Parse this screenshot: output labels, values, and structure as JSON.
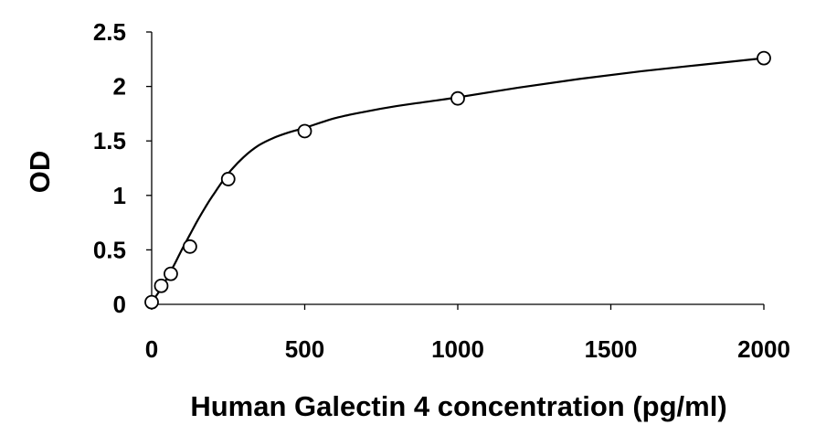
{
  "chart_data": {
    "type": "scatter",
    "title": "",
    "xlabel": "Human Galectin 4 concentration (pg/ml)",
    "ylabel": "OD",
    "xlim": [
      0,
      2000
    ],
    "ylim": [
      0,
      2.5
    ],
    "x_ticks": [
      "0",
      "500",
      "1000",
      "1500",
      "2000"
    ],
    "y_ticks": [
      "0",
      "0.5",
      "1",
      "1.5",
      "2",
      "2.5"
    ],
    "grid": false,
    "legend": "none",
    "series": [
      {
        "x": [
          0,
          31.25,
          62.5,
          125,
          250,
          500,
          1000,
          2000
        ],
        "y": [
          0.02,
          0.17,
          0.28,
          0.53,
          1.15,
          1.59,
          1.89,
          2.26
        ]
      }
    ],
    "fit_curve": {
      "x": [
        0,
        25,
        50,
        75,
        100,
        125,
        150,
        175,
        200,
        250,
        300,
        350,
        400,
        450,
        500,
        600,
        700,
        800,
        900,
        1000,
        1200,
        1400,
        1600,
        1800,
        2000
      ],
      "y": [
        0.02,
        0.12,
        0.24,
        0.37,
        0.51,
        0.64,
        0.77,
        0.89,
        1.0,
        1.2,
        1.35,
        1.46,
        1.53,
        1.58,
        1.62,
        1.71,
        1.77,
        1.82,
        1.86,
        1.9,
        1.99,
        2.07,
        2.14,
        2.2,
        2.26
      ]
    },
    "colors": {
      "line": "#000000",
      "marker_edge": "#000000",
      "marker_fill": "#ffffff"
    }
  }
}
